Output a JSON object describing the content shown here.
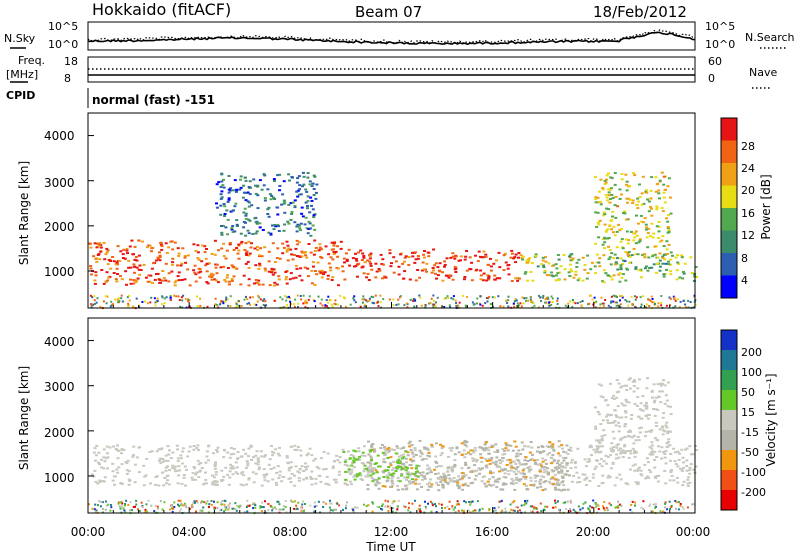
{
  "header": {
    "station": "Hokkaido (fitACF)",
    "beam": "Beam 07",
    "date": "18/Feb/2012"
  },
  "noise_panel": {
    "left_label": "N.Sky",
    "right_label": "N.Search",
    "left_ticks": [
      "10^5",
      "10^0"
    ],
    "right_ticks": [
      "10^5",
      "10^0"
    ]
  },
  "freq_panel": {
    "left_label_top": "Freq.",
    "left_label_bottom": "[MHz]",
    "right_label": "Nave",
    "left_ticks": [
      "18",
      "8"
    ],
    "right_ticks": [
      "60",
      "0"
    ]
  },
  "cpid": {
    "label": "CPID",
    "value": "normal (fast) -151"
  },
  "power_panel": {
    "ylabel": "Slant Range [km]",
    "yticks": [
      "4000",
      "3000",
      "2000",
      "1000"
    ],
    "colorbar_title": "Power [dB]",
    "colorbar_ticks": [
      "28",
      "24",
      "20",
      "16",
      "12",
      "8",
      "4"
    ]
  },
  "velocity_panel": {
    "ylabel": "Slant Range [km]",
    "yticks": [
      "4000",
      "3000",
      "2000",
      "1000"
    ],
    "colorbar_title": "Velocity [m s⁻¹]",
    "colorbar_ticks": [
      "200",
      "100",
      "50",
      "15",
      "-15",
      "-50",
      "-100",
      "-200"
    ]
  },
  "xaxis": {
    "ticks": [
      "00:00",
      "04:00",
      "08:00",
      "12:00",
      "16:00",
      "20:00",
      "00:00"
    ],
    "label": "Time UT"
  },
  "colors": {
    "power_scale": [
      "#0000ff",
      "#2c5fb0",
      "#3c8c6c",
      "#52a84e",
      "#e8dc14",
      "#f0a014",
      "#f06414",
      "#e61414"
    ],
    "velocity_scale": [
      "#e60000",
      "#f05014",
      "#f0960f",
      "#b4b4a8",
      "#c8c8be",
      "#64c828",
      "#32a050",
      "#1e7896",
      "#1432c8"
    ]
  },
  "chart_data": {
    "type": "heatmap",
    "title": "Hokkaido (fitACF)  Beam 07  18/Feb/2012",
    "x_range_hours": [
      0,
      24
    ],
    "y_range_km": [
      180,
      4500
    ],
    "xlabel": "Time UT",
    "ylabel": "Slant Range [km]",
    "panels": [
      {
        "name": "Power",
        "unit": "dB",
        "scale": [
          4,
          28
        ],
        "scatter_regions": [
          {
            "t_start": 0,
            "t_end": 10,
            "r_min": 700,
            "r_max": 1700,
            "value": 25
          },
          {
            "t_start": 10,
            "t_end": 17,
            "r_min": 800,
            "r_max": 1500,
            "value": 27
          },
          {
            "t_start": 17,
            "t_end": 21,
            "r_min": 750,
            "r_max": 1400,
            "value": 16
          },
          {
            "t_start": 21,
            "t_end": 24,
            "r_min": 800,
            "r_max": 1400,
            "value": 14
          },
          {
            "t_start": 5,
            "t_end": 9,
            "r_min": 1800,
            "r_max": 3200,
            "value": 9
          },
          {
            "t_start": 20,
            "t_end": 23,
            "r_min": 1300,
            "r_max": 3200,
            "value": 18
          }
        ]
      },
      {
        "name": "Velocity",
        "unit": "m/s",
        "scale": [
          -200,
          200
        ],
        "scatter_regions": [
          {
            "t_start": 0,
            "t_end": 24,
            "r_min": 800,
            "r_max": 1700,
            "value": 0
          },
          {
            "t_start": 11,
            "t_end": 19,
            "r_min": 700,
            "r_max": 1800,
            "value": -60
          },
          {
            "t_start": 10,
            "t_end": 13,
            "r_min": 900,
            "r_max": 1600,
            "value": 40
          },
          {
            "t_start": 20,
            "t_end": 23,
            "r_min": 1500,
            "r_max": 3200,
            "value": 0
          }
        ]
      }
    ]
  }
}
